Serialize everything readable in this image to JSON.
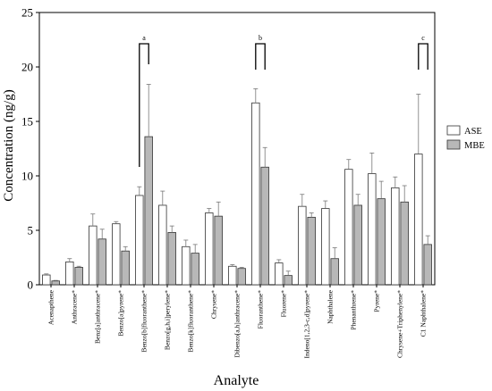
{
  "chart_data": {
    "type": "bar",
    "xlabel": "Analyte",
    "ylabel": "Concentration (ng/g)",
    "ylim": [
      0,
      25
    ],
    "yticks": [
      0,
      5,
      10,
      15,
      20,
      25
    ],
    "legend_position": "right",
    "categories": [
      "Acenapthene",
      "Anthracene*",
      "Benz[a]anthracene*",
      "Benzo[a]pyrene*",
      "Benzo[b]fluoranthene*",
      "Benzo[g,h,i]perylene*",
      "Benzo[k]fluoranthene*",
      "Chrysene*",
      "Dibenzo[a,h]anthracene*",
      "Fluoranthene*",
      "Fluorene*",
      "Indeno[1,2,3-c,d]pyrene*",
      "Naphthalene",
      "Phenanthrene*",
      "Pyrene*",
      "Chrysene+Triphenylene*",
      "C1 Naphthalene*"
    ],
    "series": [
      {
        "name": "ASE",
        "color": "#ffffff",
        "values": [
          0.9,
          2.1,
          5.4,
          5.6,
          8.2,
          7.3,
          3.5,
          6.6,
          1.7,
          16.7,
          2.0,
          7.2,
          7.0,
          10.6,
          10.2,
          8.9,
          12.0
        ],
        "errors": [
          0.1,
          0.3,
          1.1,
          0.2,
          0.8,
          1.3,
          0.6,
          0.4,
          0.15,
          1.3,
          0.3,
          1.1,
          0.7,
          0.9,
          1.9,
          1.0,
          5.5
        ]
      },
      {
        "name": "MBE",
        "color": "#b8b8b8",
        "values": [
          0.35,
          1.6,
          4.2,
          3.1,
          13.6,
          4.8,
          2.9,
          6.3,
          1.5,
          10.8,
          0.85,
          6.2,
          2.4,
          7.3,
          7.9,
          7.6,
          3.7
        ],
        "errors": [
          0.05,
          0.1,
          0.9,
          0.4,
          4.8,
          0.6,
          0.8,
          1.3,
          0.1,
          1.8,
          0.4,
          0.4,
          1.0,
          1.0,
          1.6,
          1.5,
          0.8
        ]
      }
    ],
    "annotations": [
      {
        "label": "a",
        "category_index": 4
      },
      {
        "label": "b",
        "category_index": 9
      },
      {
        "label": "c",
        "category_index": 16
      }
    ]
  }
}
